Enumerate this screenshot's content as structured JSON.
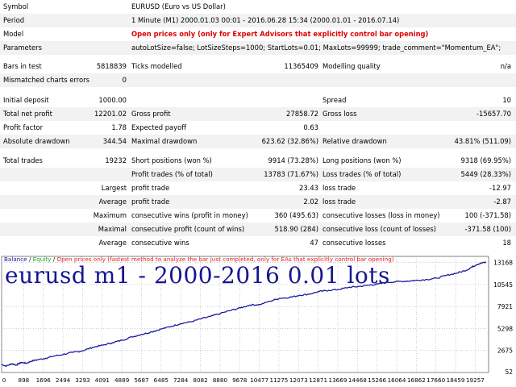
{
  "report": {
    "symbol_label": "Symbol",
    "symbol_value": "EURUSD (Euro vs US Dollar)",
    "period_label": "Period",
    "period_value": "1 Minute (M1) 2000.01.03 00:01 - 2016.06.28 15:34 (2000.01.01 - 2016.07.14)",
    "model_label": "Model",
    "model_value": "Open prices only (only for Expert Advisors that explicitly control bar opening)",
    "params_label": "Parameters",
    "params_value": "autoLotSize=false; LotSizeSteps=1000; StartLots=0.01; MaxLots=99999; trade_comment=\"Momentum_EA\";",
    "bars_label": "Bars in test",
    "bars_value": "5818839",
    "ticks_label": "Ticks modelled",
    "ticks_value": "11365409",
    "quality_label": "Modelling quality",
    "quality_value": "n/a",
    "mismatch_label": "Mismatched charts errors",
    "mismatch_value": "0",
    "deposit_label": "Initial deposit",
    "deposit_value": "1000.00",
    "spread_label": "Spread",
    "spread_value": "10",
    "netprofit_label": "Total net profit",
    "netprofit_value": "12201.02",
    "grossprofit_label": "Gross profit",
    "grossprofit_value": "27858.72",
    "grossloss_label": "Gross loss",
    "grossloss_value": "-15657.70",
    "pf_label": "Profit factor",
    "pf_value": "1.78",
    "payoff_label": "Expected payoff",
    "payoff_value": "0.63",
    "absdd_label": "Absolute drawdown",
    "absdd_value": "344.54",
    "maxdd_label": "Maximal drawdown",
    "maxdd_value": "623.62 (32.86%)",
    "reldd_label": "Relative drawdown",
    "reldd_value": "43.81% (511.09)",
    "trades_label": "Total trades",
    "trades_value": "19232",
    "short_label": "Short positions (won %)",
    "short_value": "9914 (73.28%)",
    "long_label": "Long positions (won %)",
    "long_value": "9318 (69.95%)",
    "profittr_label": "Profit trades (% of total)",
    "profittr_value": "13783 (71.67%)",
    "losstr_label": "Loss trades (% of total)",
    "losstr_value": "5449 (28.33%)",
    "largest_label": "Largest",
    "largest_profit_label": "profit trade",
    "largest_profit_value": "23.43",
    "largest_loss_label": "loss trade",
    "largest_loss_value": "-12.97",
    "average_label": "Average",
    "average_profit_label": "profit trade",
    "average_profit_value": "2.02",
    "average_loss_label": "loss trade",
    "average_loss_value": "-2.87",
    "maximum_label": "Maximum",
    "maxwins_label": "consecutive wins (profit in money)",
    "maxwins_value": "360 (495.63)",
    "maxlosses_label": "consecutive losses (loss in money)",
    "maxlosses_value": "100 (-371.58)",
    "maximal_label": "Maximal",
    "maxprofit_label": "consecutive profit (count of wins)",
    "maxprofit_value": "518.90 (284)",
    "maxloss_label": "consecutive loss (count of losses)",
    "maxloss_value": "-371.58 (100)",
    "average2_label": "Average",
    "avgwins_label": "consecutive wins",
    "avgwins_value": "47",
    "avglosses_label": "consecutive losses",
    "avglosses_value": "18"
  },
  "chart_legend": {
    "balance": "Balance",
    "sep1": " / ",
    "equity": "Equity",
    "sep2": " / ",
    "open": "Open prices only",
    "text": " (fastest method to analyze the bar just completed, only for EAs that explicitly control bar opening)"
  },
  "overlay_text": "eurusd m1 - 2000-2016 0.01 lots",
  "colors": {
    "balance_line": "#1a1aa0",
    "grid": "#a8b0c0",
    "legend_equity": "#22a022",
    "legend_text": "#e02020"
  },
  "chart_data": {
    "type": "line",
    "xticks": [
      "0",
      "898",
      "1696",
      "2494",
      "3293",
      "4091",
      "4889",
      "5687",
      "6485",
      "7284",
      "8082",
      "8880",
      "9678",
      "10477",
      "11275",
      "12073",
      "12871",
      "13669",
      "14468",
      "15266",
      "16064",
      "16862",
      "17660",
      "18459",
      "19257"
    ],
    "yticks": [
      "13168",
      "10545",
      "7921",
      "5298",
      "2675",
      "52"
    ],
    "ylim": [
      52,
      13900
    ],
    "xlim": [
      0,
      19800
    ],
    "series": [
      {
        "name": "Balance",
        "x": [
          0,
          200,
          400,
          600,
          800,
          1000,
          1200,
          1500,
          1800,
          2100,
          2500,
          2900,
          3300,
          3700,
          4100,
          4500,
          4900,
          5300,
          5700,
          6100,
          6500,
          6900,
          7300,
          7700,
          8100,
          8500,
          8900,
          9300,
          9700,
          10100,
          10500,
          10900,
          11300,
          11700,
          12100,
          12500,
          12900,
          13300,
          13700,
          14100,
          14500,
          14900,
          15300,
          15700,
          16100,
          16500,
          16900,
          17300,
          17700,
          18100,
          18500,
          18900,
          19100,
          19300,
          19500,
          19700
        ],
        "y": [
          1000,
          820,
          1100,
          950,
          1250,
          1150,
          1400,
          1600,
          1750,
          2000,
          2200,
          2450,
          2650,
          3050,
          3300,
          3600,
          3900,
          4300,
          4600,
          4900,
          5250,
          5550,
          5900,
          6100,
          6450,
          6750,
          7100,
          7450,
          7750,
          8100,
          8150,
          8550,
          8900,
          9000,
          9250,
          9400,
          9700,
          9850,
          9950,
          10200,
          10300,
          10450,
          10600,
          10800,
          10900,
          10950,
          11050,
          11150,
          11300,
          11650,
          11900,
          12250,
          12600,
          12900,
          13100,
          13200
        ]
      }
    ]
  }
}
